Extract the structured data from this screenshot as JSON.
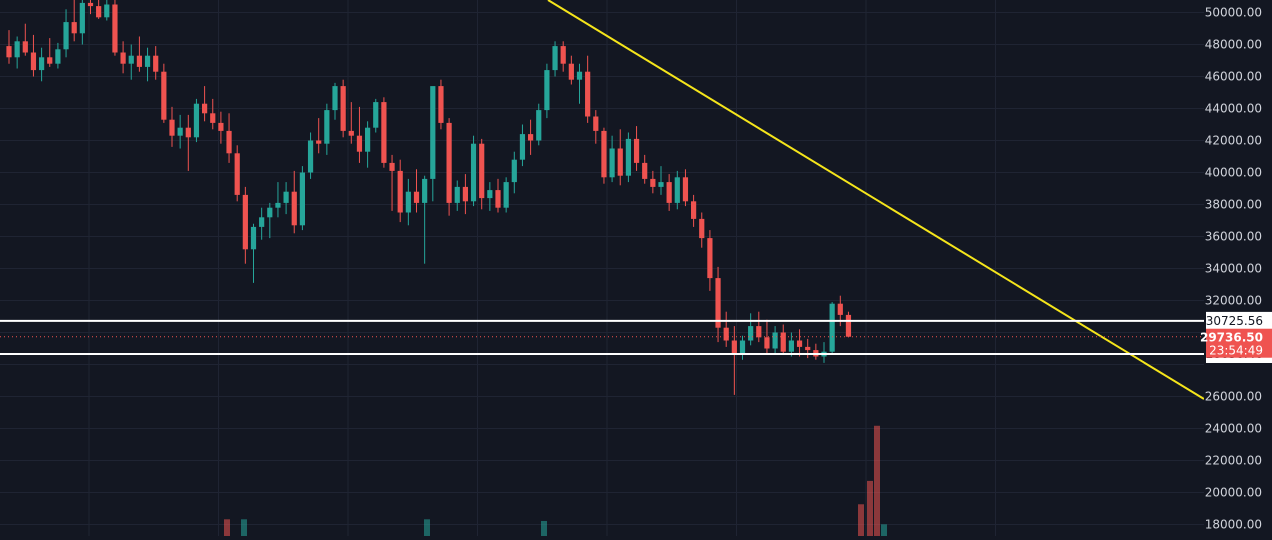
{
  "colors": {
    "background": "#131722",
    "grid": "#1f2433",
    "up": "#26a69a",
    "down": "#ef5350",
    "trendline": "#f5e51b",
    "level_line": "#ffffff",
    "axis_text": "#d1d4dc"
  },
  "chart_data": {
    "type": "candlestick",
    "grid": true,
    "price_axis": "right",
    "ylim": [
      17600,
      51000
    ],
    "y_ticks": [
      "50000.00",
      "48000.00",
      "46000.00",
      "44000.00",
      "42000.00",
      "40000.00",
      "38000.00",
      "36000.00",
      "34000.00",
      "32000.00",
      "26000.00",
      "24000.00",
      "22000.00",
      "20000.00",
      "18000.00"
    ],
    "levels": [
      {
        "name": "resistance",
        "value": 30725.56,
        "label": "30725.56"
      },
      {
        "name": "support",
        "value": 28656.46,
        "label": "28656.46"
      }
    ],
    "current_price": {
      "value": 29736.5,
      "label": "29736.50",
      "countdown": "23:54:49"
    },
    "trendline": {
      "points": [
        [
          1,
          51000
        ],
        [
          75,
          26000
        ]
      ]
    },
    "candles": [
      [
        47900,
        48900,
        46800,
        47200
      ],
      [
        47200,
        48500,
        46500,
        48200
      ],
      [
        48200,
        49300,
        47300,
        47500
      ],
      [
        47500,
        48600,
        46000,
        46400
      ],
      [
        46400,
        47800,
        45700,
        47200
      ],
      [
        47200,
        48400,
        46600,
        46800
      ],
      [
        46800,
        48100,
        46500,
        47700
      ],
      [
        47700,
        50200,
        47200,
        49400
      ],
      [
        49400,
        50800,
        48200,
        48700
      ],
      [
        48700,
        51000,
        48000,
        50600
      ],
      [
        50600,
        51000,
        49900,
        50400
      ],
      [
        50400,
        51000,
        49600,
        49700
      ],
      [
        49700,
        51000,
        49500,
        50500
      ],
      [
        50500,
        51000,
        47300,
        47500
      ],
      [
        47500,
        48200,
        46200,
        46800
      ],
      [
        46800,
        48000,
        45800,
        47300
      ],
      [
        47300,
        48500,
        46300,
        46600
      ],
      [
        46600,
        47800,
        45700,
        47300
      ],
      [
        47300,
        47900,
        45800,
        46300
      ],
      [
        46300,
        46800,
        43100,
        43300
      ],
      [
        43300,
        44100,
        41600,
        42300
      ],
      [
        42300,
        43600,
        41500,
        42800
      ],
      [
        42800,
        43600,
        40100,
        42200
      ],
      [
        42200,
        44600,
        41900,
        44300
      ],
      [
        44300,
        45400,
        43200,
        43700
      ],
      [
        43700,
        44600,
        42700,
        43100
      ],
      [
        43100,
        43800,
        41800,
        42600
      ],
      [
        42600,
        43700,
        40600,
        41200
      ],
      [
        41200,
        41700,
        38200,
        38600
      ],
      [
        38600,
        39100,
        34300,
        35200
      ],
      [
        35200,
        36800,
        33100,
        36600
      ],
      [
        36600,
        37800,
        35800,
        37200
      ],
      [
        37200,
        38100,
        35900,
        37800
      ],
      [
        37800,
        39400,
        37200,
        38100
      ],
      [
        38100,
        39400,
        37400,
        38800
      ],
      [
        38800,
        40100,
        36200,
        36700
      ],
      [
        36700,
        40400,
        36400,
        40000
      ],
      [
        40000,
        42500,
        39600,
        42000
      ],
      [
        42000,
        43400,
        41200,
        41800
      ],
      [
        41800,
        44300,
        41100,
        43900
      ],
      [
        43900,
        45600,
        43300,
        45400
      ],
      [
        45400,
        45800,
        42200,
        42600
      ],
      [
        42600,
        44400,
        41800,
        42300
      ],
      [
        42300,
        44100,
        40600,
        41300
      ],
      [
        41300,
        43200,
        40300,
        42800
      ],
      [
        42800,
        44600,
        42500,
        44400
      ],
      [
        44400,
        44700,
        40300,
        40600
      ],
      [
        40600,
        41100,
        37600,
        40100
      ],
      [
        40100,
        40800,
        36900,
        37500
      ],
      [
        37500,
        39600,
        36700,
        38800
      ],
      [
        38800,
        40200,
        37500,
        38100
      ],
      [
        38100,
        39800,
        34300,
        39600
      ],
      [
        39600,
        45200,
        38200,
        45400
      ],
      [
        45400,
        45800,
        42700,
        43100
      ],
      [
        43100,
        43400,
        37300,
        38100
      ],
      [
        38100,
        39500,
        37600,
        39100
      ],
      [
        39100,
        39900,
        37400,
        38200
      ],
      [
        38200,
        42300,
        37900,
        41800
      ],
      [
        41800,
        42100,
        37700,
        38400
      ],
      [
        38400,
        39400,
        37600,
        38900
      ],
      [
        38900,
        39600,
        37500,
        37800
      ],
      [
        37800,
        39700,
        37500,
        39400
      ],
      [
        39400,
        41300,
        38700,
        40800
      ],
      [
        40800,
        43000,
        40400,
        42400
      ],
      [
        42400,
        43300,
        41100,
        42000
      ],
      [
        42000,
        44300,
        41700,
        43900
      ],
      [
        43900,
        46800,
        43400,
        46400
      ],
      [
        46400,
        48200,
        46000,
        47900
      ],
      [
        47900,
        48200,
        46300,
        46800
      ],
      [
        46800,
        47300,
        45500,
        45800
      ],
      [
        45800,
        46800,
        44300,
        46300
      ],
      [
        46300,
        47300,
        43100,
        43500
      ],
      [
        43500,
        43900,
        41800,
        42600
      ],
      [
        42600,
        42800,
        39300,
        39700
      ],
      [
        39700,
        42300,
        39400,
        41500
      ],
      [
        41500,
        42700,
        39200,
        39800
      ],
      [
        39800,
        42500,
        39400,
        42100
      ],
      [
        42100,
        42900,
        40100,
        40600
      ],
      [
        40600,
        41100,
        39300,
        39600
      ],
      [
        39600,
        40100,
        38700,
        39100
      ],
      [
        39100,
        40400,
        38600,
        39400
      ],
      [
        39400,
        39900,
        37600,
        38100
      ],
      [
        38100,
        40100,
        37700,
        39700
      ],
      [
        39700,
        40200,
        37900,
        38200
      ],
      [
        38200,
        38600,
        36600,
        37100
      ],
      [
        37100,
        37500,
        35300,
        35900
      ],
      [
        35900,
        36400,
        32600,
        33400
      ],
      [
        33400,
        34100,
        29400,
        30300
      ],
      [
        30300,
        31300,
        29100,
        29500
      ],
      [
        29500,
        30400,
        26100,
        28600
      ],
      [
        28600,
        29800,
        28300,
        29500
      ],
      [
        29500,
        31200,
        29200,
        30400
      ],
      [
        30400,
        31300,
        29400,
        29700
      ],
      [
        29700,
        30800,
        28700,
        29000
      ],
      [
        29000,
        30400,
        28700,
        30000
      ],
      [
        30000,
        30500,
        28600,
        28800
      ],
      [
        28800,
        30000,
        28500,
        29500
      ],
      [
        29500,
        30200,
        28500,
        29100
      ],
      [
        29100,
        29600,
        28400,
        28900
      ],
      [
        28900,
        29300,
        28300,
        28500
      ],
      [
        28500,
        29400,
        28100,
        28800
      ],
      [
        28800,
        31900,
        28700,
        31800
      ],
      [
        31800,
        32300,
        30400,
        31100
      ],
      [
        31100,
        31300,
        29700,
        29736.5
      ]
    ],
    "volume": [
      {
        "index": 14,
        "value": 1000,
        "dir": "down"
      },
      {
        "index": 15,
        "value": 1000,
        "dir": "up"
      },
      {
        "index": 26,
        "value": 1000,
        "dir": "up"
      },
      {
        "index": 33,
        "value": 900,
        "dir": "up"
      },
      {
        "index": 53,
        "value": 1900,
        "dir": "down"
      },
      {
        "index": 54,
        "value": 3300,
        "dir": "down"
      },
      {
        "index": 55,
        "value": 6600,
        "dir": "down"
      },
      {
        "index": 56,
        "value": 700,
        "dir": "up"
      }
    ]
  }
}
